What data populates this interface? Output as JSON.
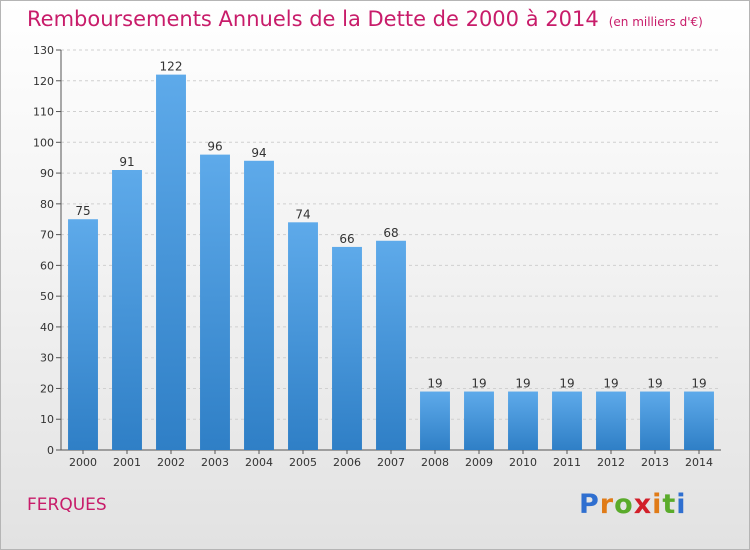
{
  "chart_data": {
    "type": "bar",
    "title": "Remboursements Annuels de la Dette de 2000 à 2014",
    "unit": "(en milliers d'€)",
    "categories": [
      "2000",
      "2001",
      "2002",
      "2003",
      "2004",
      "2005",
      "2006",
      "2007",
      "2008",
      "2009",
      "2010",
      "2011",
      "2012",
      "2013",
      "2014"
    ],
    "values": [
      75,
      91,
      122,
      96,
      94,
      74,
      66,
      68,
      19,
      19,
      19,
      19,
      19,
      19,
      19
    ],
    "ylim": [
      0,
      130
    ],
    "yticks": [
      0,
      10,
      20,
      30,
      40,
      50,
      60,
      70,
      80,
      90,
      100,
      110,
      120,
      130
    ],
    "grid": true,
    "bar_color": "#4f9fe0"
  },
  "commune": "FERQUES",
  "logo": {
    "letters": [
      "P",
      "r",
      "o",
      "x",
      "i",
      "t",
      "i"
    ],
    "colors": [
      "#2f6fd0",
      "#e07b17",
      "#5aab2b",
      "#d21f2a",
      "#e07b17",
      "#5aab2b",
      "#2f6fd0"
    ]
  }
}
